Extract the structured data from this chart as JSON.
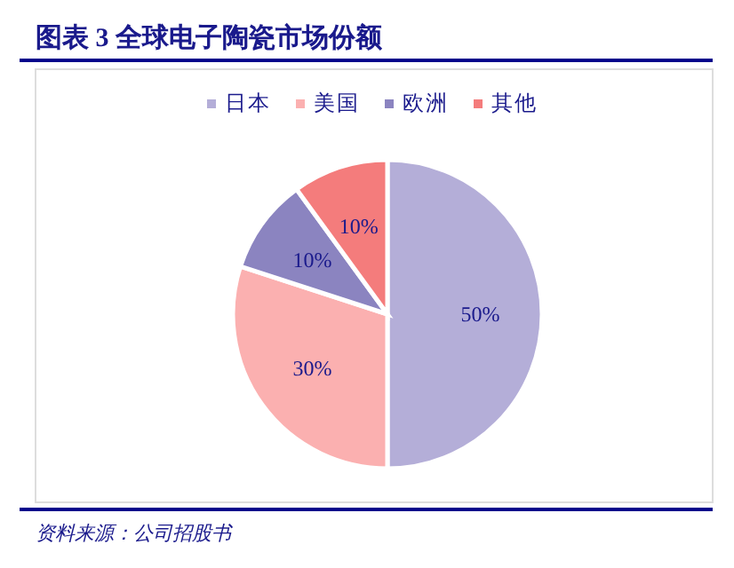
{
  "chart_data": {
    "type": "pie",
    "title": "图表 3 全球电子陶瓷市场份额",
    "categories": [
      "日本",
      "美国",
      "欧洲",
      "其他"
    ],
    "values": [
      50,
      30,
      10,
      10
    ],
    "colors": [
      "#b4aed8",
      "#fbb0b0",
      "#8b84c0",
      "#f47c7c"
    ],
    "value_labels": [
      "50%",
      "30%",
      "10%",
      "10%"
    ],
    "legend": "top",
    "annotations": [
      "资料来源：公司招股书"
    ]
  }
}
